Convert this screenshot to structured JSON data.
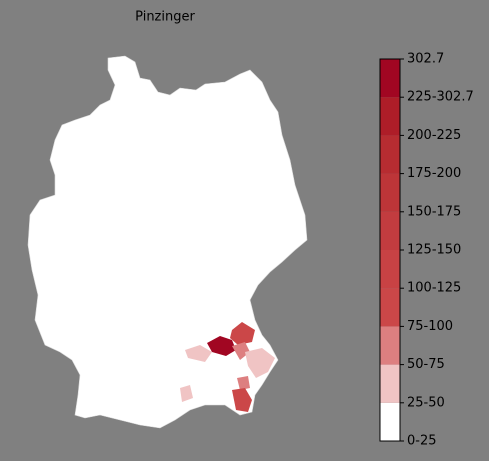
{
  "title": "Pinzinger",
  "colorbar": {
    "labels": [
      "0-25",
      "25-50",
      "50-75",
      "75-100",
      "100-125",
      "125-150",
      "150-175",
      "175-200",
      "200-225",
      "225-302.7",
      "302.7"
    ],
    "colors": [
      "#ffffff",
      "#f0c4c4",
      "#dd7f80",
      "#cb4748",
      "#c84244",
      "#c23c3f",
      "#bd3538",
      "#b72c31",
      "#ae1d28",
      "#a10622"
    ]
  }
}
